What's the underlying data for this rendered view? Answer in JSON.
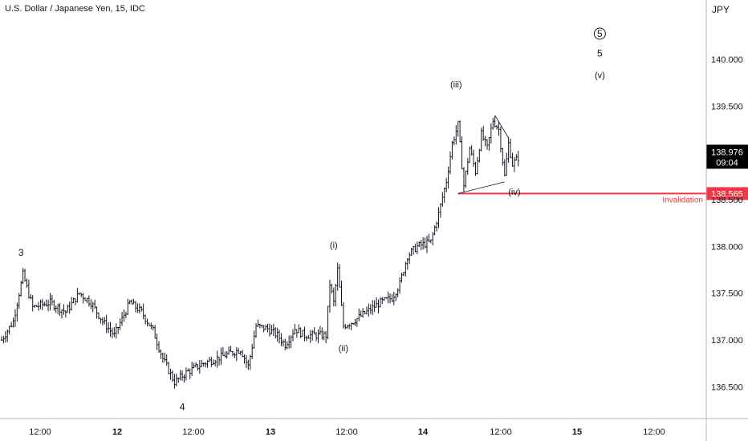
{
  "header": {
    "symbol_title": "U.S. Dollar / Japanese Yen, 15, IDC",
    "currency": "JPY"
  },
  "chart_data": {
    "type": "ohlc",
    "title": "U.S. Dollar / Japanese Yen, 15, IDC",
    "y_unit": "JPY",
    "ylim": [
      136.0,
      141.3
    ],
    "y_ticks": [
      "136.500",
      "137.000",
      "137.500",
      "138.000",
      "138.500",
      "139.500",
      "140.000"
    ],
    "x_ticks": [
      {
        "label": "12:00",
        "bold": false
      },
      {
        "label": "12",
        "bold": true
      },
      {
        "label": "12:00",
        "bold": false
      },
      {
        "label": "13",
        "bold": true
      },
      {
        "label": "12:00",
        "bold": false
      },
      {
        "label": "14",
        "bold": true
      },
      {
        "label": "12:00",
        "bold": false
      },
      {
        "label": "15",
        "bold": true
      },
      {
        "label": "12:00",
        "bold": false
      }
    ],
    "price_path": [
      {
        "bar": 0,
        "price": 137.0
      },
      {
        "bar": 6,
        "price": 137.2
      },
      {
        "bar": 11,
        "price": 137.7
      },
      {
        "bar": 16,
        "price": 137.35
      },
      {
        "bar": 25,
        "price": 137.4
      },
      {
        "bar": 33,
        "price": 137.3
      },
      {
        "bar": 40,
        "price": 137.5
      },
      {
        "bar": 46,
        "price": 137.4
      },
      {
        "bar": 52,
        "price": 137.2
      },
      {
        "bar": 58,
        "price": 137.05
      },
      {
        "bar": 66,
        "price": 137.4
      },
      {
        "bar": 72,
        "price": 137.3
      },
      {
        "bar": 78,
        "price": 137.1
      },
      {
        "bar": 83,
        "price": 136.8
      },
      {
        "bar": 89,
        "price": 136.55
      },
      {
        "bar": 95,
        "price": 136.65
      },
      {
        "bar": 104,
        "price": 136.75
      },
      {
        "bar": 113,
        "price": 136.82
      },
      {
        "bar": 123,
        "price": 136.9
      },
      {
        "bar": 127,
        "price": 136.72
      },
      {
        "bar": 131,
        "price": 137.15
      },
      {
        "bar": 137,
        "price": 137.12
      },
      {
        "bar": 142,
        "price": 137.05
      },
      {
        "bar": 146,
        "price": 136.95
      },
      {
        "bar": 151,
        "price": 137.12
      },
      {
        "bar": 156,
        "price": 137.05
      },
      {
        "bar": 163,
        "price": 137.05
      },
      {
        "bar": 167,
        "price": 137.05
      },
      {
        "bar": 169,
        "price": 137.6
      },
      {
        "bar": 171,
        "price": 137.4
      },
      {
        "bar": 173,
        "price": 137.75
      },
      {
        "bar": 176,
        "price": 137.15
      },
      {
        "bar": 181,
        "price": 137.2
      },
      {
        "bar": 188,
        "price": 137.3
      },
      {
        "bar": 195,
        "price": 137.4
      },
      {
        "bar": 201,
        "price": 137.45
      },
      {
        "bar": 205,
        "price": 137.6
      },
      {
        "bar": 209,
        "price": 137.9
      },
      {
        "bar": 214,
        "price": 138.0
      },
      {
        "bar": 221,
        "price": 138.05
      },
      {
        "bar": 225,
        "price": 138.35
      },
      {
        "bar": 229,
        "price": 138.7
      },
      {
        "bar": 232,
        "price": 139.1
      },
      {
        "bar": 235,
        "price": 139.3
      },
      {
        "bar": 238,
        "price": 138.65
      },
      {
        "bar": 241,
        "price": 139.05
      },
      {
        "bar": 244,
        "price": 138.8
      },
      {
        "bar": 247,
        "price": 139.2
      },
      {
        "bar": 250,
        "price": 139.05
      },
      {
        "bar": 253,
        "price": 139.35
      },
      {
        "bar": 256,
        "price": 139.25
      },
      {
        "bar": 259,
        "price": 138.75
      },
      {
        "bar": 261,
        "price": 139.1
      },
      {
        "bar": 263,
        "price": 138.88
      },
      {
        "bar": 266,
        "price": 138.95
      }
    ],
    "current_price": {
      "value": "138.976",
      "countdown": "09:04"
    },
    "invalidation": {
      "value": "138.565",
      "label": "Invalidation"
    },
    "wave_labels": [
      {
        "text": "3",
        "bar": 10,
        "price": 137.9,
        "big": true
      },
      {
        "text": "4",
        "bar": 93,
        "price": 136.25,
        "big": true
      },
      {
        "text": "(i)",
        "bar": 171,
        "price": 137.98,
        "big": false
      },
      {
        "text": "(ii)",
        "bar": 176,
        "price": 136.88,
        "big": false
      },
      {
        "text": "(iii)",
        "bar": 234,
        "price": 139.7,
        "big": false
      },
      {
        "text": "(iv)",
        "bar": 264,
        "price": 138.55,
        "big": false
      },
      {
        "text": "(v)",
        "bar": 308,
        "price": 139.8,
        "big": false
      },
      {
        "text": "5",
        "bar": 308,
        "price": 140.03,
        "big": true
      },
      {
        "text": "5",
        "bar": 308,
        "price": 140.24,
        "big": true,
        "circled": true
      }
    ],
    "triangle": [
      {
        "bar": 235,
        "price": 138.565
      },
      {
        "bar": 254,
        "price": 139.4
      },
      {
        "bar": 261,
        "price": 139.16
      },
      {
        "bar": 259,
        "price": 138.69
      }
    ],
    "grid": false
  }
}
